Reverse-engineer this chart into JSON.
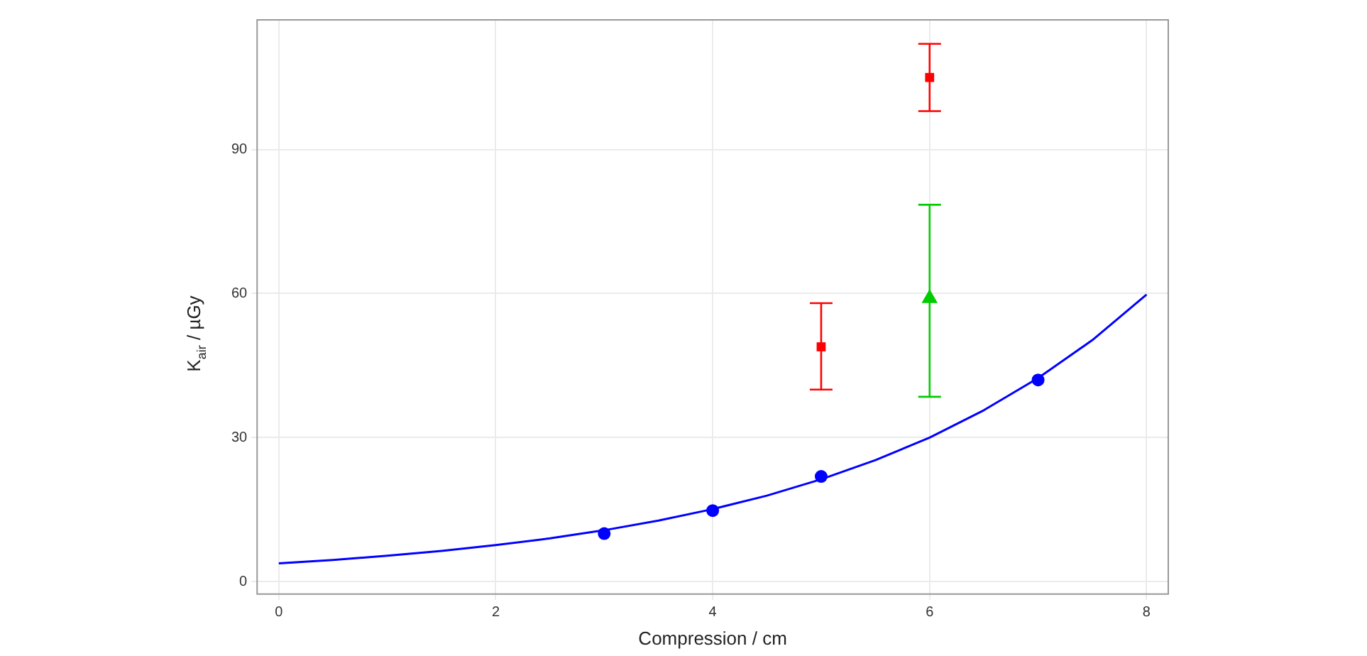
{
  "chart_data": {
    "type": "scatter",
    "xlabel": "Compression / cm",
    "ylabel": "K$_{air}$ / µGy",
    "xlim": [
      -0.2,
      8.2
    ],
    "xticks": [
      0,
      2,
      4,
      6,
      8
    ],
    "ylim": [
      -2.6,
      117
    ],
    "yticks": [
      0,
      30,
      60,
      90
    ],
    "grid": true,
    "series": [
      {
        "type": "line",
        "marker": "none",
        "color": "#0000ff",
        "x": [
          0,
          0.5,
          1,
          1.5,
          2,
          2.5,
          3,
          3.5,
          4,
          4.5,
          5,
          5.5,
          6,
          6.5,
          7,
          7.5,
          8
        ],
        "values": [
          3.8,
          4.5,
          5.4,
          6.4,
          7.6,
          9.0,
          10.7,
          12.7,
          15.1,
          17.9,
          21.3,
          25.3,
          30.0,
          35.7,
          42.4,
          50.3,
          59.8
        ]
      },
      {
        "marker": "circle",
        "color": "#0000ff",
        "x": [
          3,
          4,
          5,
          7
        ],
        "values": [
          10,
          14.8,
          21.9,
          42
        ]
      },
      {
        "marker": "square",
        "color": "#ff0000",
        "x": [
          5,
          6
        ],
        "values": [
          48.9,
          105
        ],
        "errors": [
          [
            40,
            58
          ],
          [
            98,
            112
          ]
        ]
      },
      {
        "marker": "triangle",
        "color": "#00cc00",
        "x": [
          6
        ],
        "values": [
          59
        ],
        "errors": [
          [
            38.5,
            78.5
          ]
        ]
      }
    ]
  }
}
